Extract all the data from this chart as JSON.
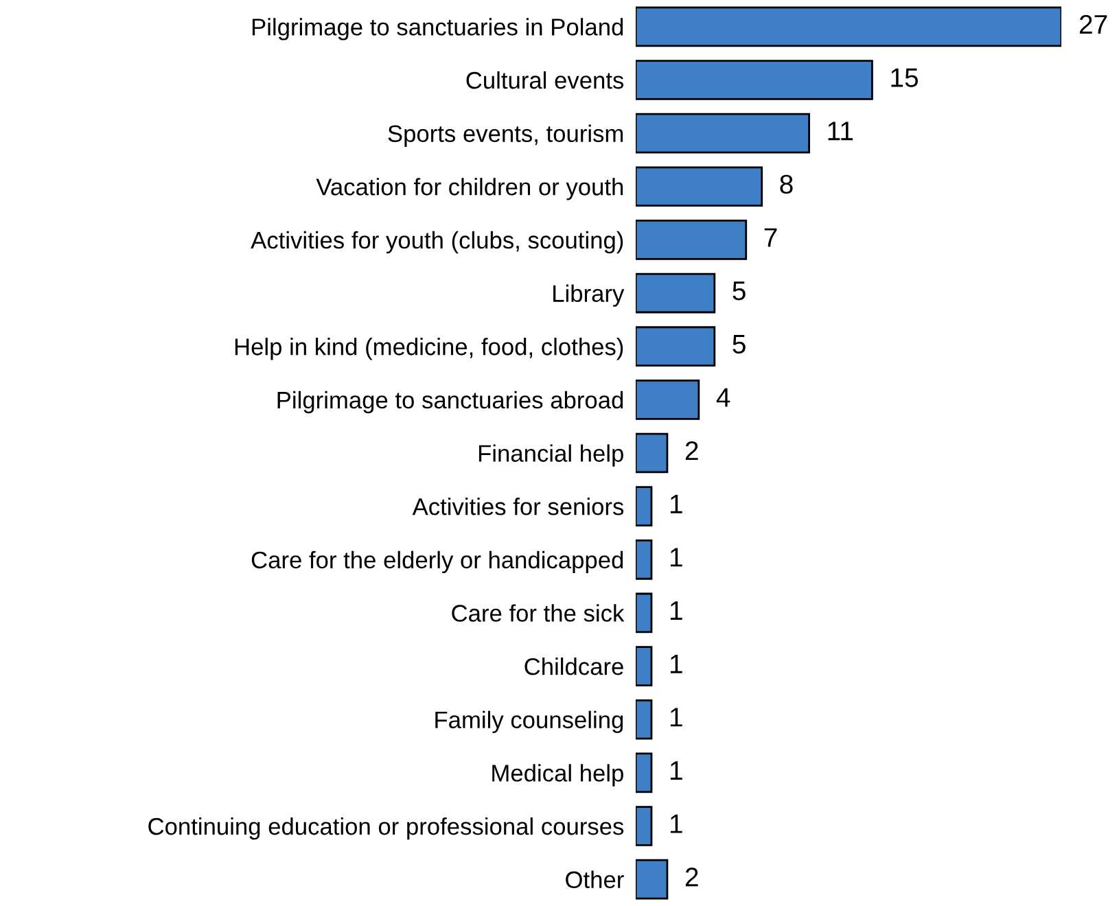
{
  "chart_data": {
    "type": "bar",
    "orientation": "horizontal",
    "categories": [
      "Pilgrimage to sanctuaries in Poland",
      "Cultural events",
      "Sports events, tourism",
      "Vacation for children or youth",
      "Activities for youth (clubs, scouting)",
      "Library",
      "Help in kind (medicine, food, clothes)",
      "Pilgrimage to sanctuaries abroad",
      "Financial help",
      "Activities for seniors",
      "Care for the elderly or handicapped",
      "Care for the sick",
      "Childcare",
      "Family counseling",
      "Medical help",
      "Continuing education or professional courses",
      "Other"
    ],
    "values": [
      27,
      15,
      11,
      8,
      7,
      5,
      5,
      4,
      2,
      1,
      1,
      1,
      1,
      1,
      1,
      1,
      2
    ],
    "color": "#3f7fc6",
    "data_labels": true,
    "grid": false,
    "legend": false
  }
}
